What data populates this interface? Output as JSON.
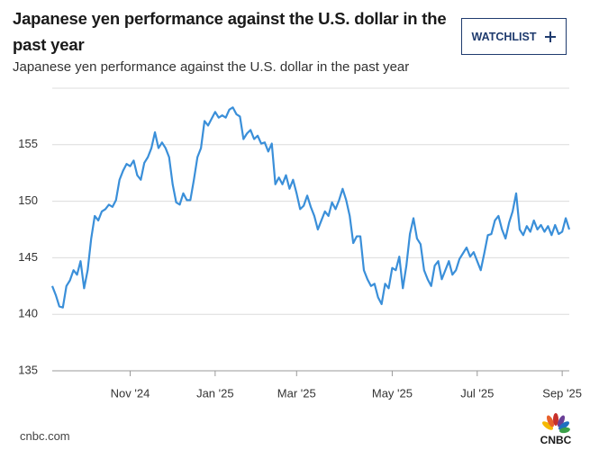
{
  "chart_data": {
    "type": "line",
    "title": "Japanese yen performance against the U.S. dollar in the past year",
    "subtitle": "Japanese yen performance against the U.S. dollar in the past year",
    "categories": [
      null,
      null,
      null,
      null,
      null,
      null,
      null,
      null,
      null,
      null,
      null,
      null,
      null,
      null,
      null,
      null,
      null,
      null,
      null,
      null,
      null,
      null,
      "Nov '24",
      null,
      null,
      null,
      null,
      null,
      null,
      null,
      null,
      null,
      null,
      null,
      null,
      null,
      null,
      null,
      null,
      null,
      null,
      null,
      null,
      null,
      null,
      null,
      "Jan '25",
      null,
      null,
      null,
      null,
      null,
      null,
      null,
      null,
      null,
      null,
      null,
      null,
      null,
      null,
      null,
      null,
      null,
      null,
      null,
      null,
      null,
      null,
      "Mar '25",
      null,
      null,
      null,
      null,
      null,
      null,
      null,
      null,
      null,
      null,
      null,
      null,
      null,
      null,
      null,
      null,
      null,
      null,
      null,
      null,
      null,
      null,
      null,
      null,
      null,
      null,
      "May '25",
      null,
      null,
      null,
      null,
      null,
      null,
      null,
      null,
      null,
      null,
      null,
      null,
      null,
      null,
      null,
      null,
      null,
      null,
      null,
      null,
      null,
      null,
      null,
      "Jul '25",
      null,
      null,
      null,
      null,
      null,
      null,
      null,
      null,
      null,
      null,
      null,
      null,
      null,
      null,
      null,
      null,
      null,
      null,
      null,
      null,
      null,
      null,
      null,
      "Sep '25",
      null,
      null
    ],
    "values": [
      142.5,
      141.7,
      140.7,
      140.6,
      142.5,
      143,
      143.9,
      143.5,
      144.7,
      142.3,
      143.9,
      146.7,
      148.7,
      148.3,
      149.1,
      149.3,
      149.7,
      149.5,
      150.1,
      151.9,
      152.7,
      153.3,
      153.1,
      153.6,
      152.3,
      151.9,
      153.4,
      153.9,
      154.7,
      156.1,
      154.7,
      155.2,
      154.7,
      153.9,
      151.5,
      149.9,
      149.7,
      150.7,
      150.1,
      150.1,
      151.9,
      153.9,
      154.7,
      157.1,
      156.7,
      157.3,
      157.9,
      157.4,
      157.6,
      157.4,
      158.1,
      158.3,
      157.7,
      157.5,
      155.5,
      156.0,
      156.3,
      155.5,
      155.8,
      155.1,
      155.2,
      154.4,
      155.1,
      151.5,
      152.1,
      151.5,
      152.3,
      151.1,
      151.9,
      150.7,
      149.3,
      149.6,
      150.5,
      149.5,
      148.7,
      147.5,
      148.3,
      149.1,
      148.7,
      149.9,
      149.3,
      150.1,
      151.1,
      150.1,
      148.7,
      146.3,
      146.9,
      146.9,
      143.9,
      143.1,
      142.5,
      142.7,
      141.5,
      140.9,
      142.7,
      142.3,
      144.1,
      143.9,
      145.1,
      142.3,
      144.3,
      147.1,
      148.5,
      146.7,
      146.2,
      143.9,
      143.1,
      142.5,
      144.3,
      144.7,
      143.1,
      143.9,
      144.7,
      143.5,
      143.9,
      144.9,
      145.4,
      145.9,
      145.1,
      145.5,
      144.7,
      143.9,
      145.4,
      147.0,
      147.1,
      148.3,
      148.7,
      147.5,
      146.7,
      148.1,
      149.1,
      150.7,
      147.5,
      147.0,
      147.8,
      147.3,
      148.3,
      147.5,
      147.9,
      147.3,
      147.8,
      147.0,
      147.9,
      147.1,
      147.3,
      148.5,
      147.5
    ],
    "color": "#3a8fd9",
    "ylim": [
      135,
      160
    ],
    "yticks": [
      135,
      140,
      145,
      150,
      155
    ],
    "grid": true
  },
  "watchlist_button": "WATCHLIST",
  "source": "cnbc.com",
  "logo": "CNBC"
}
